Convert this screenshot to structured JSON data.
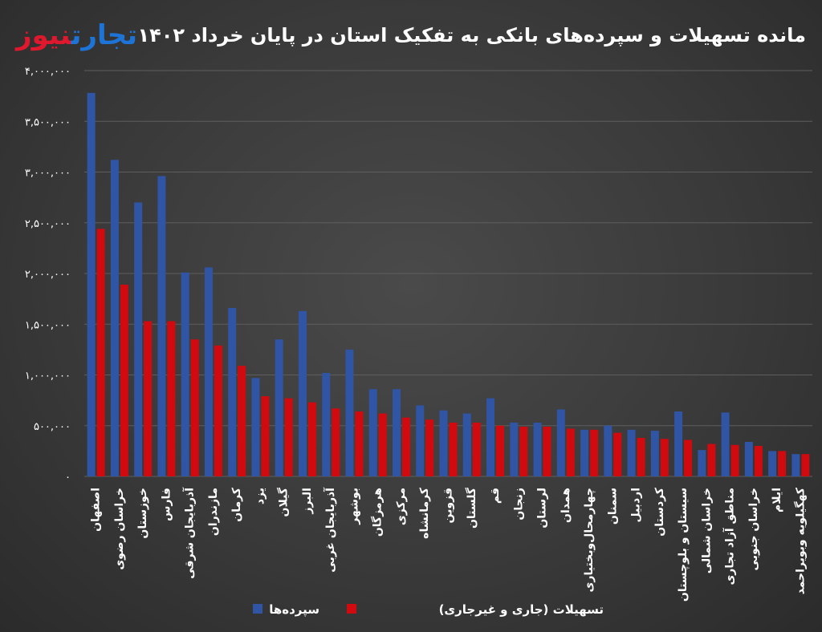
{
  "chart_data": {
    "type": "bar",
    "title": "مانده تسهیلات و سپرده‌های بانکی به تفکیک استان در پایان خرداد ۱۴۰۲",
    "categories": [
      "اصفهان",
      "خراسان رضوی",
      "خوزستان",
      "فارس",
      "آذربایجان شرقی",
      "مازندران",
      "کرمان",
      "یزد",
      "گیلان",
      "البرز",
      "آذربایجان غربی",
      "بوشهر",
      "هرمزگان",
      "مرکزی",
      "کرمانشاه",
      "قزوین",
      "گلستان",
      "قم",
      "زنجان",
      "لرستان",
      "همدان",
      "چهارمحال‌وبختیاری",
      "سمنان",
      "اردبیل",
      "کردستان",
      "سیستان و بلوچستان",
      "خراسان شمالی",
      "مناطق آزاد تجاری",
      "خراسان جنوبی",
      "ایلام",
      "کهگیلویه وبویراحمد"
    ],
    "series": [
      {
        "name": "سپرده‌ها",
        "color": "#2f55a4",
        "values": [
          3780000,
          3120000,
          2700000,
          2960000,
          2010000,
          2060000,
          1660000,
          970000,
          1350000,
          1630000,
          1020000,
          1250000,
          860000,
          860000,
          700000,
          650000,
          620000,
          770000,
          530000,
          530000,
          660000,
          460000,
          500000,
          460000,
          450000,
          640000,
          260000,
          630000,
          340000,
          250000,
          220000
        ]
      },
      {
        "name": "تسهیلات (جاری و غیرجاری)",
        "color": "#d10a10",
        "values": [
          2440000,
          1890000,
          1530000,
          1530000,
          1350000,
          1290000,
          1090000,
          790000,
          770000,
          730000,
          670000,
          640000,
          620000,
          580000,
          560000,
          530000,
          530000,
          500000,
          490000,
          490000,
          470000,
          460000,
          430000,
          380000,
          370000,
          360000,
          320000,
          310000,
          300000,
          250000,
          220000
        ]
      }
    ],
    "ylim": [
      0,
      4000000
    ],
    "yticks": [
      "۴,۰۰۰,۰۰۰",
      "۳,۵۰۰,۰۰۰",
      "۳,۰۰۰,۰۰۰",
      "۲,۵۰۰,۰۰۰",
      "۲,۰۰۰,۰۰۰",
      "۱,۵۰۰,۰۰۰",
      "۱,۰۰۰,۰۰۰",
      "۵۰۰,۰۰۰",
      "۰"
    ],
    "ytick_values": [
      4000000,
      3500000,
      3000000,
      2500000,
      2000000,
      1500000,
      1000000,
      500000,
      0
    ],
    "grid": true,
    "legend_position": "bottom"
  },
  "logo": {
    "part1": "تجارت",
    "part2": "نیوز"
  }
}
